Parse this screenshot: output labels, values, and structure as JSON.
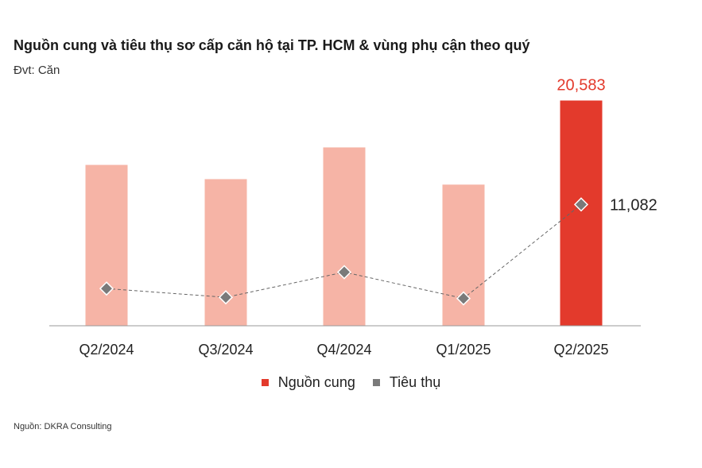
{
  "title": "Nguồn cung và tiêu thụ sơ cấp căn hộ tại TP. HCM & vùng phụ cận theo quý",
  "unit_label": "Đvt: Căn",
  "source": "Nguồn: DKRA Consulting",
  "colors": {
    "supply_past": "#f6b4a6",
    "supply_latest": "#e33a2c",
    "consumption": "#7a7a7a",
    "axis": "#999999"
  },
  "chart_data": {
    "type": "bar",
    "categories": [
      "Q2/2024",
      "Q3/2024",
      "Q4/2024",
      "Q1/2025",
      "Q2/2025"
    ],
    "series": [
      {
        "name": "Nguồn cung",
        "type": "bar",
        "values": [
          14700,
          13400,
          16300,
          12900,
          20583
        ]
      },
      {
        "name": "Tiêu thụ",
        "type": "line",
        "values": [
          3400,
          2600,
          4900,
          2500,
          11082
        ]
      }
    ],
    "data_labels": {
      "supply_last": "20,583",
      "consumption_last": "11,082"
    },
    "ylim": [
      0,
      22000
    ],
    "grid": false,
    "legend": "bottom"
  }
}
